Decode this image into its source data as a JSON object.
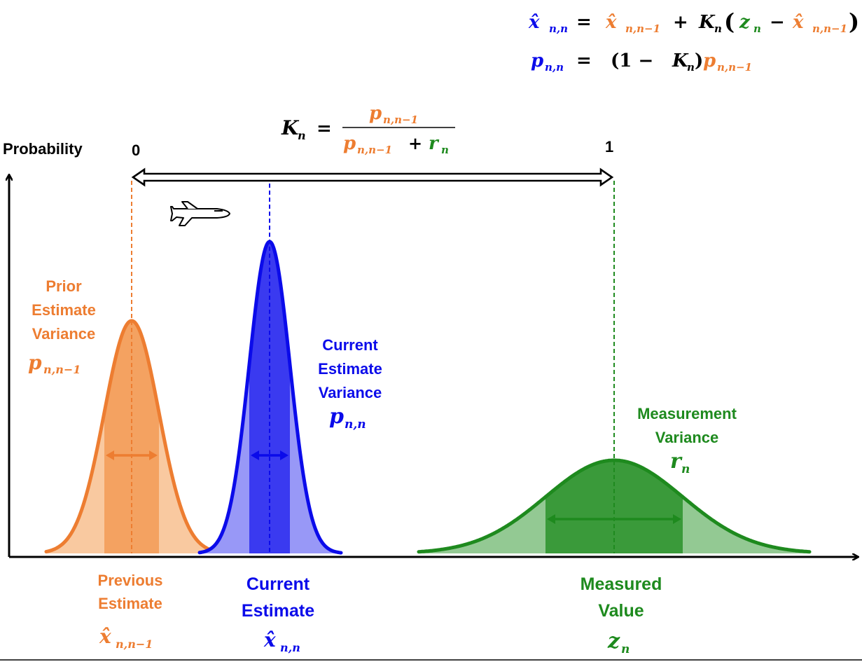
{
  "colors": {
    "prior": "#ed7d31",
    "prior_fill_dark": "#f4a261",
    "prior_fill_light": "#f9c9a0",
    "current": "#0b0bea",
    "current_fill_dark": "#3a3af0",
    "current_fill_light": "#9898f7",
    "measurement": "#1e8a1e",
    "measurement_fill_dark": "#3a9a3a",
    "measurement_fill_light": "#93c993",
    "axis": "#000000"
  },
  "equations": {
    "state_update": {
      "lhs": "x̂",
      "lhs_sub": "n,n",
      "eq": "=",
      "t1": "x̂",
      "t1_sub": "n,n−1",
      "plus": "+",
      "k": "K",
      "k_sub": "n",
      "paren_open": "(",
      "z": "z",
      "z_sub": "n",
      "minus": "−",
      "t2": "x̂",
      "t2_sub": "n,n−1",
      "paren_close": ")"
    },
    "variance_update": {
      "lhs": "p",
      "lhs_sub": "n,n",
      "eq": "=",
      "factor": "(1 − ",
      "k": "K",
      "k_sub": "n",
      "close": ")",
      "p": "p",
      "p_sub": "n,n−1"
    },
    "gain": {
      "lhs": "K",
      "lhs_sub": "n",
      "eq": "=",
      "num": "p",
      "num_sub": "n,n−1",
      "den_p": "p",
      "den_p_sub": "n,n−1",
      "den_plus": "+",
      "den_r": "r",
      "den_r_sub": "n"
    }
  },
  "axis": {
    "y_label": "Probability",
    "gain_min": "0",
    "gain_max": "1"
  },
  "labels": {
    "prior_variance": [
      "Prior",
      "Estimate",
      "Variance"
    ],
    "prior_variance_sym": "p",
    "prior_variance_sub": "n,n−1",
    "current_variance": [
      "Current",
      "Estimate",
      "Variance"
    ],
    "current_variance_sym": "p",
    "current_variance_sub": "n,n",
    "measurement_variance": [
      "Measurement",
      "Variance"
    ],
    "measurement_variance_sym": "r",
    "measurement_variance_sub": "n",
    "previous_estimate": [
      "Previous",
      "Estimate"
    ],
    "previous_estimate_sym": "x̂",
    "previous_estimate_sub": "n,n−1",
    "current_estimate": [
      "Current",
      "Estimate"
    ],
    "current_estimate_sym": "x̂",
    "current_estimate_sub": "n,n",
    "measured_value": [
      "Measured",
      "Value"
    ],
    "measured_value_sym": "z",
    "measured_value_sub": "n"
  },
  "icons": {
    "aircraft": "airplane-icon"
  }
}
